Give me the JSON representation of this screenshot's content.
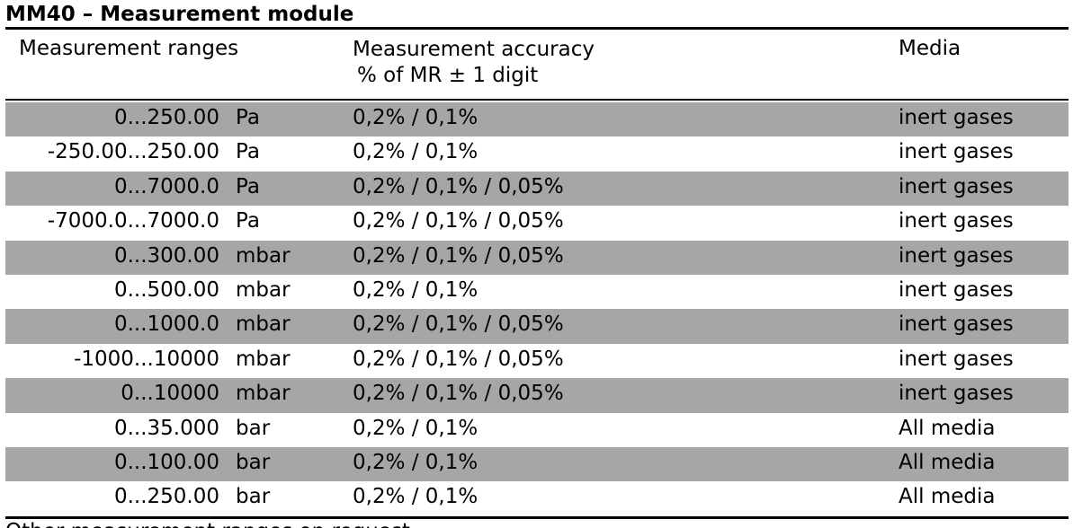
{
  "title": "MM40 – Measurement module",
  "header": {
    "ranges": "Measurement ranges",
    "accuracy_line1": "Measurement accuracy",
    "accuracy_line2": "% of MR ± 1 digit",
    "media": "Media"
  },
  "rows": [
    {
      "range": "0...250.00",
      "unit": "Pa",
      "accuracy": "0,2% / 0,1%",
      "media": " inert gases",
      "shaded": true
    },
    {
      "range": "-250.00...250.00",
      "unit": "Pa",
      "accuracy": "0,2% / 0,1%",
      "media": "inert gases",
      "shaded": false
    },
    {
      "range": "0...7000.0",
      "unit": "Pa",
      "accuracy": "0,2% / 0,1% / 0,05%",
      "media": "inert gases",
      "shaded": true
    },
    {
      "range": "-7000.0...7000.0",
      "unit": "Pa",
      "accuracy": "0,2% / 0,1% / 0,05%",
      "media": "inert gases",
      "shaded": false
    },
    {
      "range": "0...300.00",
      "unit": "mbar",
      "accuracy": "0,2% / 0,1% / 0,05%",
      "media": "inert gases",
      "shaded": true
    },
    {
      "range": "0...500.00",
      "unit": "mbar",
      "accuracy": "0,2% / 0,1%",
      "media": "inert gases",
      "shaded": false
    },
    {
      "range": "0...1000.0",
      "unit": "mbar",
      "accuracy": "0,2% / 0,1% / 0,05%",
      "media": "inert gases",
      "shaded": true
    },
    {
      "range": "-1000...10000",
      "unit": "mbar",
      "accuracy": "0,2% / 0,1% / 0,05%",
      "media": "inert gases",
      "shaded": false
    },
    {
      "range": "0...10000",
      "unit": "mbar",
      "accuracy": "0,2% / 0,1% / 0,05%",
      "media": "inert gases",
      "shaded": true
    },
    {
      "range": "0...35.000",
      "unit": "bar",
      "accuracy": "0,2% / 0,1%",
      "media": "All media",
      "shaded": false
    },
    {
      "range": "0...100.00",
      "unit": "bar",
      "accuracy": "0,2% / 0,1%",
      "media": "All media",
      "shaded": true
    },
    {
      "range": "0...250.00",
      "unit": "bar",
      "accuracy": "0,2% / 0,1%",
      "media": "All media",
      "shaded": false
    }
  ],
  "footer_partial_text": "Other measurement ranges on request"
}
